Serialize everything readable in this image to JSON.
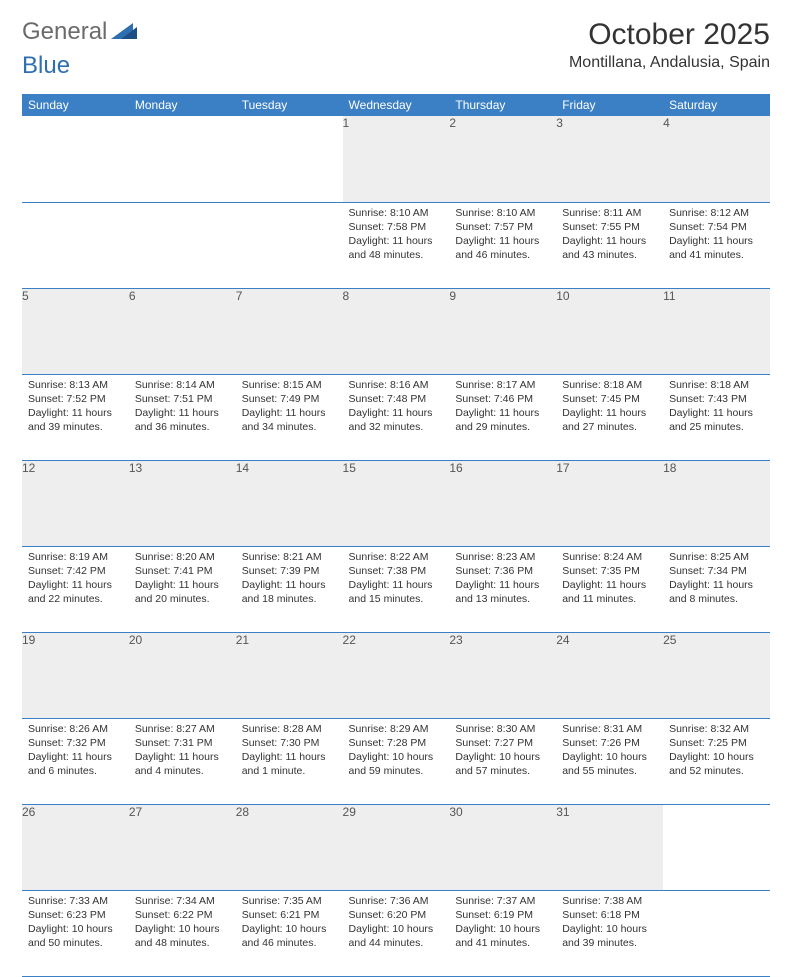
{
  "logo": {
    "text1": "General",
    "text2": "Blue",
    "color_gray": "#6b6b6b",
    "color_blue": "#2f6fb0"
  },
  "header": {
    "month": "October 2025",
    "location": "Montillana, Andalusia, Spain"
  },
  "colors": {
    "header_bg": "#3b7fc4",
    "daynum_bg": "#eeeeee",
    "rule": "#3b7fc4"
  },
  "weekdays": [
    "Sunday",
    "Monday",
    "Tuesday",
    "Wednesday",
    "Thursday",
    "Friday",
    "Saturday"
  ],
  "weeks": [
    [
      null,
      null,
      null,
      {
        "n": "1",
        "sr": "8:10 AM",
        "ss": "7:58 PM",
        "dl": "11 hours and 48 minutes."
      },
      {
        "n": "2",
        "sr": "8:10 AM",
        "ss": "7:57 PM",
        "dl": "11 hours and 46 minutes."
      },
      {
        "n": "3",
        "sr": "8:11 AM",
        "ss": "7:55 PM",
        "dl": "11 hours and 43 minutes."
      },
      {
        "n": "4",
        "sr": "8:12 AM",
        "ss": "7:54 PM",
        "dl": "11 hours and 41 minutes."
      }
    ],
    [
      {
        "n": "5",
        "sr": "8:13 AM",
        "ss": "7:52 PM",
        "dl": "11 hours and 39 minutes."
      },
      {
        "n": "6",
        "sr": "8:14 AM",
        "ss": "7:51 PM",
        "dl": "11 hours and 36 minutes."
      },
      {
        "n": "7",
        "sr": "8:15 AM",
        "ss": "7:49 PM",
        "dl": "11 hours and 34 minutes."
      },
      {
        "n": "8",
        "sr": "8:16 AM",
        "ss": "7:48 PM",
        "dl": "11 hours and 32 minutes."
      },
      {
        "n": "9",
        "sr": "8:17 AM",
        "ss": "7:46 PM",
        "dl": "11 hours and 29 minutes."
      },
      {
        "n": "10",
        "sr": "8:18 AM",
        "ss": "7:45 PM",
        "dl": "11 hours and 27 minutes."
      },
      {
        "n": "11",
        "sr": "8:18 AM",
        "ss": "7:43 PM",
        "dl": "11 hours and 25 minutes."
      }
    ],
    [
      {
        "n": "12",
        "sr": "8:19 AM",
        "ss": "7:42 PM",
        "dl": "11 hours and 22 minutes."
      },
      {
        "n": "13",
        "sr": "8:20 AM",
        "ss": "7:41 PM",
        "dl": "11 hours and 20 minutes."
      },
      {
        "n": "14",
        "sr": "8:21 AM",
        "ss": "7:39 PM",
        "dl": "11 hours and 18 minutes."
      },
      {
        "n": "15",
        "sr": "8:22 AM",
        "ss": "7:38 PM",
        "dl": "11 hours and 15 minutes."
      },
      {
        "n": "16",
        "sr": "8:23 AM",
        "ss": "7:36 PM",
        "dl": "11 hours and 13 minutes."
      },
      {
        "n": "17",
        "sr": "8:24 AM",
        "ss": "7:35 PM",
        "dl": "11 hours and 11 minutes."
      },
      {
        "n": "18",
        "sr": "8:25 AM",
        "ss": "7:34 PM",
        "dl": "11 hours and 8 minutes."
      }
    ],
    [
      {
        "n": "19",
        "sr": "8:26 AM",
        "ss": "7:32 PM",
        "dl": "11 hours and 6 minutes."
      },
      {
        "n": "20",
        "sr": "8:27 AM",
        "ss": "7:31 PM",
        "dl": "11 hours and 4 minutes."
      },
      {
        "n": "21",
        "sr": "8:28 AM",
        "ss": "7:30 PM",
        "dl": "11 hours and 1 minute."
      },
      {
        "n": "22",
        "sr": "8:29 AM",
        "ss": "7:28 PM",
        "dl": "10 hours and 59 minutes."
      },
      {
        "n": "23",
        "sr": "8:30 AM",
        "ss": "7:27 PM",
        "dl": "10 hours and 57 minutes."
      },
      {
        "n": "24",
        "sr": "8:31 AM",
        "ss": "7:26 PM",
        "dl": "10 hours and 55 minutes."
      },
      {
        "n": "25",
        "sr": "8:32 AM",
        "ss": "7:25 PM",
        "dl": "10 hours and 52 minutes."
      }
    ],
    [
      {
        "n": "26",
        "sr": "7:33 AM",
        "ss": "6:23 PM",
        "dl": "10 hours and 50 minutes."
      },
      {
        "n": "27",
        "sr": "7:34 AM",
        "ss": "6:22 PM",
        "dl": "10 hours and 48 minutes."
      },
      {
        "n": "28",
        "sr": "7:35 AM",
        "ss": "6:21 PM",
        "dl": "10 hours and 46 minutes."
      },
      {
        "n": "29",
        "sr": "7:36 AM",
        "ss": "6:20 PM",
        "dl": "10 hours and 44 minutes."
      },
      {
        "n": "30",
        "sr": "7:37 AM",
        "ss": "6:19 PM",
        "dl": "10 hours and 41 minutes."
      },
      {
        "n": "31",
        "sr": "7:38 AM",
        "ss": "6:18 PM",
        "dl": "10 hours and 39 minutes."
      },
      null
    ]
  ],
  "labels": {
    "sunrise": "Sunrise:",
    "sunset": "Sunset:",
    "daylight": "Daylight:"
  }
}
